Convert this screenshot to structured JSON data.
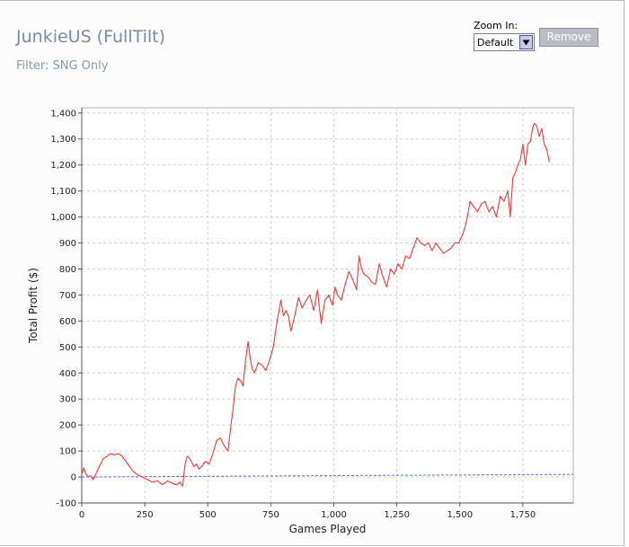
{
  "header": {
    "title": "JunkieUS (FullTilt)",
    "filter": "Filter: SNG Only"
  },
  "zoom": {
    "label": "Zoom In:",
    "selected": "Default",
    "remove_label": "Remove"
  },
  "colors": {
    "line": "#ff3333",
    "zero_line": "#6666ff",
    "grid": "#d0d0d0",
    "plot_bg": "#ffffff"
  },
  "chart_data": {
    "type": "line",
    "xlabel": "Games Played",
    "ylabel": "Total Profit ($)",
    "xlim": [
      0,
      1950
    ],
    "ylim": [
      -100,
      1420
    ],
    "x_ticks": [
      0,
      250,
      500,
      750,
      1000,
      1250,
      1500,
      1750
    ],
    "x_tick_labels": [
      "0",
      "250",
      "500",
      "750",
      "1,000",
      "1,250",
      "1,500",
      "1,750"
    ],
    "y_ticks": [
      -100,
      0,
      100,
      200,
      300,
      400,
      500,
      600,
      700,
      800,
      900,
      1000,
      1100,
      1200,
      1300,
      1400
    ],
    "y_tick_labels": [
      "-100",
      "0",
      "100",
      "200",
      "300",
      "400",
      "500",
      "600",
      "700",
      "800",
      "900",
      "1,000",
      "1,100",
      "1,200",
      "1,300",
      "1,400"
    ],
    "grid": true,
    "series": [
      {
        "x": [
          0,
          8,
          15,
          25,
          35,
          45,
          55,
          70,
          85,
          100,
          115,
          130,
          145,
          160,
          175,
          190,
          205,
          220,
          240,
          260,
          280,
          300,
          320,
          340,
          360,
          375,
          390,
          400,
          410,
          418,
          425,
          435,
          445,
          455,
          465,
          475,
          490,
          505,
          520,
          535,
          550,
          565,
          580,
          592,
          600,
          610,
          620,
          630,
          640,
          650,
          660,
          668,
          675,
          685,
          700,
          715,
          730,
          745,
          760,
          775,
          790,
          800,
          810,
          820,
          830,
          845,
          860,
          875,
          890,
          905,
          920,
          935,
          950,
          965,
          980,
          995,
          1005,
          1015,
          1030,
          1045,
          1060,
          1075,
          1090,
          1100,
          1110,
          1120,
          1135,
          1150,
          1165,
          1180,
          1195,
          1210,
          1225,
          1240,
          1255,
          1270,
          1285,
          1300,
          1315,
          1330,
          1345,
          1360,
          1375,
          1390,
          1405,
          1420,
          1435,
          1450,
          1465,
          1480,
          1495,
          1510,
          1520,
          1530,
          1540,
          1555,
          1570,
          1585,
          1600,
          1615,
          1630,
          1645,
          1660,
          1675,
          1690,
          1700,
          1710,
          1720,
          1730,
          1740,
          1750,
          1760,
          1770,
          1780,
          1788,
          1795,
          1805,
          1815,
          1825,
          1835,
          1845,
          1855
        ],
        "y": [
          10,
          35,
          15,
          0,
          5,
          -10,
          10,
          40,
          70,
          80,
          90,
          85,
          90,
          80,
          60,
          40,
          20,
          10,
          0,
          -10,
          -20,
          -15,
          -30,
          -15,
          -25,
          -30,
          -20,
          -35,
          50,
          80,
          75,
          60,
          40,
          50,
          30,
          40,
          60,
          50,
          90,
          140,
          150,
          120,
          100,
          200,
          260,
          350,
          380,
          370,
          350,
          450,
          520,
          460,
          420,
          400,
          440,
          430,
          410,
          450,
          500,
          600,
          680,
          620,
          640,
          620,
          560,
          620,
          690,
          650,
          680,
          700,
          640,
          720,
          590,
          680,
          700,
          660,
          730,
          700,
          680,
          740,
          790,
          760,
          720,
          850,
          800,
          780,
          770,
          750,
          740,
          820,
          770,
          730,
          800,
          780,
          820,
          800,
          850,
          840,
          880,
          920,
          900,
          890,
          900,
          870,
          900,
          880,
          860,
          870,
          880,
          900,
          900,
          930,
          960,
          1000,
          1060,
          1040,
          1020,
          1050,
          1060,
          1020,
          1040,
          1000,
          1080,
          1060,
          1100,
          1000,
          1150,
          1170,
          1200,
          1220,
          1280,
          1200,
          1280,
          1290,
          1340,
          1360,
          1350,
          1310,
          1340,
          1280,
          1260,
          1210
        ]
      },
      {
        "x": [
          0,
          1950
        ],
        "y": [
          0,
          10
        ]
      }
    ]
  }
}
